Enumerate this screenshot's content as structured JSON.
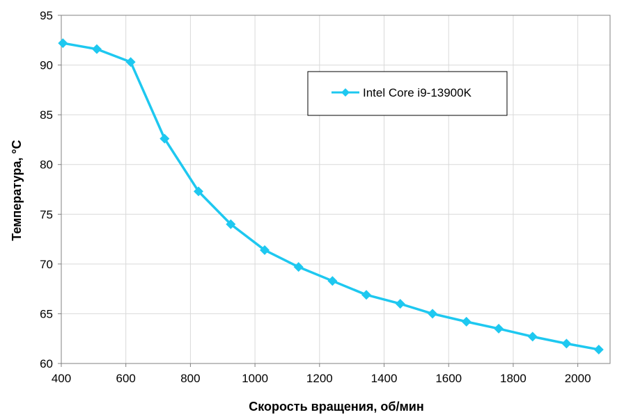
{
  "chart_data": {
    "type": "line",
    "xlabel": "Скорость вращения, об/мин",
    "ylabel": "Температура, °C",
    "xlim": [
      400,
      2100
    ],
    "ylim": [
      60,
      95
    ],
    "xticks": [
      400,
      600,
      800,
      1000,
      1200,
      1400,
      1600,
      1800,
      2000
    ],
    "yticks": [
      60,
      65,
      70,
      75,
      80,
      85,
      90,
      95
    ],
    "grid": true,
    "legend_position": "top-right",
    "series": [
      {
        "name": "Intel Core i9-13900K",
        "color": "#1ec8f0",
        "marker": "diamond",
        "x": [
          405,
          510,
          615,
          720,
          825,
          925,
          1030,
          1135,
          1240,
          1345,
          1450,
          1550,
          1655,
          1755,
          1860,
          1965,
          2065
        ],
        "y": [
          92.2,
          91.6,
          90.3,
          82.6,
          77.3,
          74.0,
          71.4,
          69.7,
          68.3,
          66.9,
          66.0,
          65.0,
          64.2,
          63.5,
          62.7,
          62.0,
          61.4
        ]
      }
    ]
  }
}
